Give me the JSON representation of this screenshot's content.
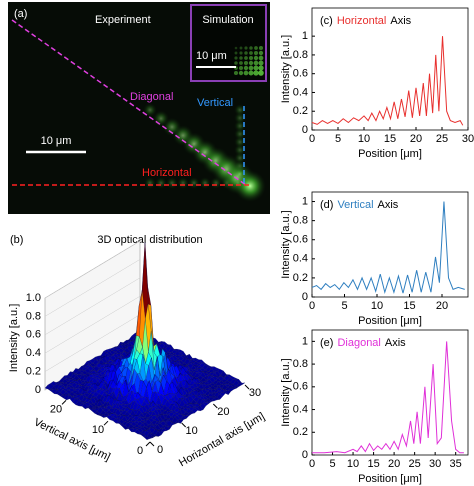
{
  "panel_a": {
    "label": "(a)",
    "experiment": "Experiment",
    "simulation": "Simulation",
    "scale_main": "10 μm",
    "scale_inset": "10 μm",
    "diagonal": "Diagonal",
    "vertical": "Vertical",
    "horizontal": "Horizontal"
  },
  "chart_data": [
    {
      "type": "surface",
      "label": "(b)",
      "title": "3D optical distribution",
      "zlabel": "Intensity [a.u.]",
      "xlabel": "Horizontal axis [μm]",
      "ylabel": "Vertical axis [μm]",
      "zlim": [
        0,
        1.0
      ],
      "zticks": [
        0,
        0.2,
        0.4,
        0.6,
        0.8,
        {
          "value": 1.0,
          "label": "1.0"
        }
      ],
      "xlim": [
        0,
        30
      ],
      "xticks": [
        0,
        10,
        20,
        30
      ],
      "ylim": [
        0,
        25
      ],
      "yticks": [
        0,
        10,
        20
      ]
    },
    {
      "type": "line",
      "label": "(c)",
      "title_highlight": "Horizontal",
      "title_rest": "Axis",
      "xlabel": "Position [μm]",
      "ylabel": "Intensity [a.u.]",
      "color": "#e8302e",
      "xlim": [
        0,
        30
      ],
      "xticks": [
        0,
        5,
        10,
        15,
        20,
        25,
        30
      ],
      "ylim": [
        0,
        1.3
      ],
      "yticks": [
        0,
        0.2,
        0.4,
        0.6,
        0.8,
        1
      ],
      "x": [
        0,
        1,
        2,
        3,
        4,
        5,
        6,
        7,
        8,
        9,
        10,
        10.8,
        11.5,
        12.3,
        13,
        13.7,
        14.4,
        15.1,
        15.8,
        16.5,
        17.2,
        17.9,
        18.6,
        19.3,
        20,
        20.7,
        21.4,
        22,
        22.6,
        23.2,
        23.8,
        24.4,
        25.1,
        25.9,
        26.6,
        27.5,
        28.5,
        29
      ],
      "values": [
        0.08,
        0.06,
        0.1,
        0.07,
        0.1,
        0.07,
        0.12,
        0.08,
        0.13,
        0.1,
        0.15,
        0.1,
        0.18,
        0.1,
        0.2,
        0.12,
        0.24,
        0.12,
        0.3,
        0.12,
        0.33,
        0.14,
        0.42,
        0.13,
        0.45,
        0.15,
        0.5,
        0.15,
        0.6,
        0.18,
        0.8,
        0.2,
        1.0,
        0.2,
        0.1,
        0.08,
        0.1,
        0.05
      ]
    },
    {
      "type": "line",
      "label": "(d)",
      "title_highlight": "Vertical",
      "title_rest": "Axis",
      "xlabel": "Position [μm]",
      "ylabel": "Intensity [a.u.]",
      "color": "#2f7fc0",
      "xlim": [
        0,
        24
      ],
      "xticks": [
        0,
        5,
        10,
        15,
        20
      ],
      "ylim": [
        0,
        1.1
      ],
      "yticks": [
        0,
        0.2,
        0.4,
        0.6,
        0.8,
        1
      ],
      "x": [
        0,
        0.7,
        1.4,
        2.1,
        2.8,
        3.5,
        4.2,
        4.9,
        5.6,
        6.3,
        7,
        7.7,
        8.4,
        9.1,
        9.8,
        10.5,
        11.2,
        11.9,
        12.6,
        13.3,
        14,
        14.7,
        15.4,
        16.1,
        16.8,
        17.5,
        18.3,
        19,
        19.6,
        20.3,
        21,
        21.7,
        22.5,
        23.5
      ],
      "values": [
        0.1,
        0.12,
        0.08,
        0.14,
        0.1,
        0.13,
        0.08,
        0.15,
        0.1,
        0.18,
        0.08,
        0.2,
        0.08,
        0.2,
        0.06,
        0.24,
        0.05,
        0.2,
        0.05,
        0.22,
        0.04,
        0.23,
        0.05,
        0.28,
        0.05,
        0.26,
        0.05,
        0.42,
        0.15,
        1.0,
        0.2,
        0.08,
        0.1,
        0.08
      ]
    },
    {
      "type": "line",
      "label": "(e)",
      "title_highlight": "Diagonal",
      "title_rest": "Axis",
      "xlabel": "Position [μm]",
      "ylabel": "Intensity [a.u.]",
      "color": "#e030d8",
      "xlim": [
        0,
        38
      ],
      "xticks": [
        0,
        5,
        10,
        15,
        20,
        25,
        30,
        35
      ],
      "ylim": [
        0,
        1.1
      ],
      "yticks": [
        0,
        0.2,
        0.4,
        0.6,
        0.8,
        1
      ],
      "x": [
        0,
        3,
        6,
        8,
        10,
        11,
        12,
        13,
        14,
        15,
        16,
        17,
        18,
        19,
        20,
        21,
        22,
        23,
        24,
        24.8,
        25.6,
        26.4,
        27.5,
        28.3,
        29.5,
        30.5,
        31.5,
        32.8,
        34,
        35,
        36,
        37
      ],
      "values": [
        0.02,
        0.02,
        0.03,
        0.02,
        0.05,
        0.03,
        0.08,
        0.03,
        0.1,
        0.04,
        0.08,
        0.05,
        0.1,
        0.05,
        0.12,
        0.05,
        0.18,
        0.08,
        0.3,
        0.1,
        0.38,
        0.1,
        0.6,
        0.15,
        0.8,
        0.1,
        0.15,
        1.0,
        0.3,
        0.05,
        0.02,
        0.02
      ]
    }
  ]
}
